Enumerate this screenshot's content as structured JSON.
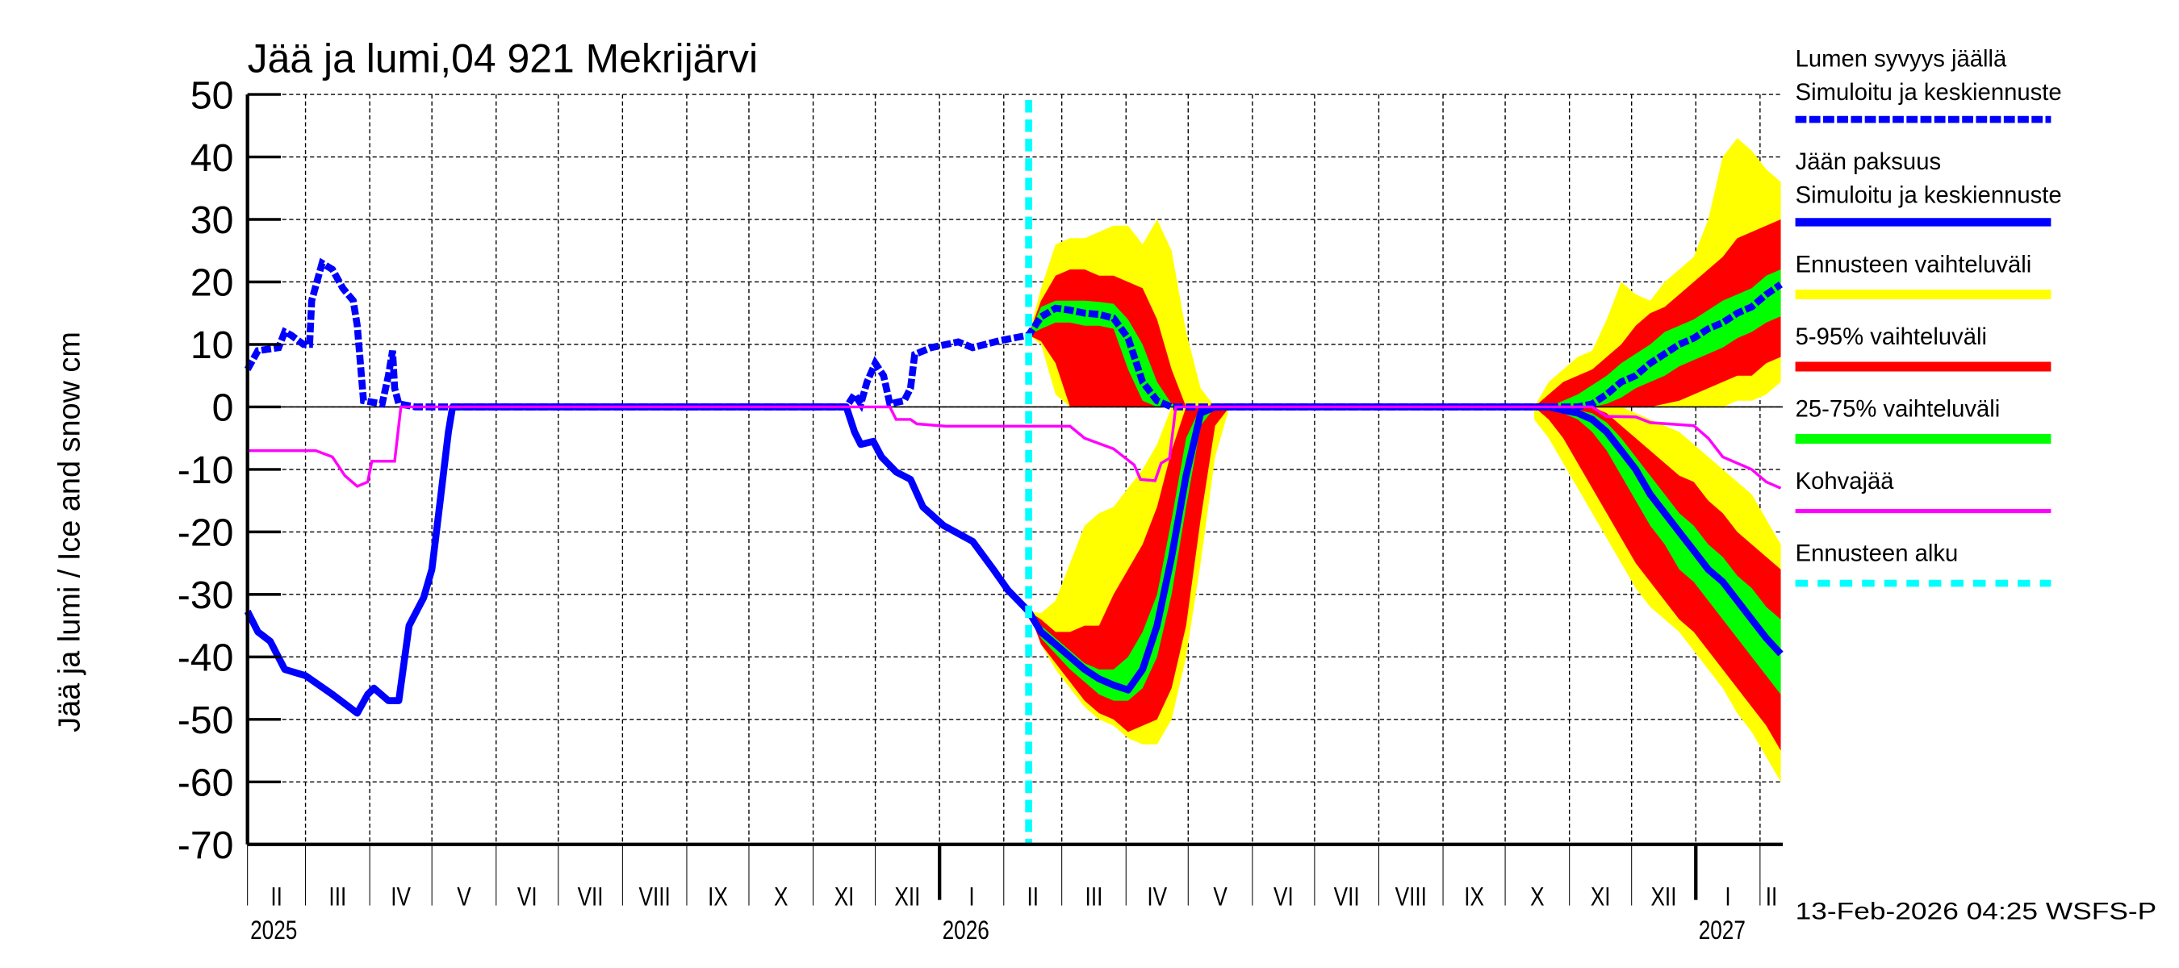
{
  "chart_data": {
    "type": "line",
    "title": "Jää ja lumi,04 921 Mekrijärvi",
    "ylabel": "Jää ja lumi / Ice and snow    cm",
    "ylim": [
      -70,
      50
    ],
    "yticks": [
      50,
      40,
      30,
      20,
      10,
      0,
      -10,
      -20,
      -30,
      -40,
      -50,
      -60,
      -70
    ],
    "x_range": [
      "2025-02-01",
      "2027-02-12"
    ],
    "grid": true,
    "legend_position": "right",
    "month_labels": [
      "II",
      "III",
      "IV",
      "V",
      "VI",
      "VII",
      "VIII",
      "IX",
      "X",
      "XI",
      "XII",
      "I",
      "II",
      "III",
      "IV",
      "V",
      "VI",
      "VII",
      "VIII",
      "IX",
      "X",
      "XI",
      "XII",
      "I",
      "II"
    ],
    "year_labels": [
      {
        "year": "2025",
        "date": "2025-02-01"
      },
      {
        "year": "2026",
        "date": "2026-01-01"
      },
      {
        "year": "2027",
        "date": "2027-01-01"
      }
    ],
    "forecast_start": "2026-02-13",
    "timestamp": "13-Feb-2026 04:25 WSFS-P",
    "colors": {
      "snow": "#0000ff",
      "ice": "#0000ff",
      "range": "#ffff00",
      "p5_95": "#ff0000",
      "p25_75": "#00ff00",
      "kohva": "#ff00ff",
      "forecast_start": "#00ffff"
    },
    "legend": [
      {
        "title": "Lumen syvyys jäällä",
        "subtitle": "Simuloitu ja keskiennuste",
        "style": "dashed",
        "color": "#0000ff"
      },
      {
        "title": "Jään paksuus",
        "subtitle": "Simuloitu ja keskiennuste",
        "style": "solid",
        "color": "#0000ff"
      },
      {
        "title": "Ennusteen vaihteluväli",
        "style": "band",
        "color": "#ffff00"
      },
      {
        "title": "5-95% vaihteluväli",
        "style": "band",
        "color": "#ff0000"
      },
      {
        "title": "25-75% vaihteluväli",
        "style": "band",
        "color": "#00ff00"
      },
      {
        "title": "Kohvajää",
        "style": "thin",
        "color": "#ff00ff"
      },
      {
        "title": "Ennusteen alku",
        "style": "dotted",
        "color": "#00ffff"
      }
    ],
    "series": [
      {
        "name": "Lumen syvyys jäällä",
        "points": [
          [
            "2025-02-01",
            6
          ],
          [
            "2025-02-06",
            9
          ],
          [
            "2025-02-16",
            9.5
          ],
          [
            "2025-02-19",
            12
          ],
          [
            "2025-02-22",
            11.5
          ],
          [
            "2025-02-28",
            10
          ],
          [
            "2025-03-03",
            10
          ],
          [
            "2025-03-04",
            17
          ],
          [
            "2025-03-09",
            23
          ],
          [
            "2025-03-14",
            22
          ],
          [
            "2025-03-19",
            19
          ],
          [
            "2025-03-24",
            17
          ],
          [
            "2025-03-26",
            13
          ],
          [
            "2025-03-29",
            1
          ],
          [
            "2025-04-07",
            0.5
          ],
          [
            "2025-04-10",
            5
          ],
          [
            "2025-04-12",
            9
          ],
          [
            "2025-04-13",
            3
          ],
          [
            "2025-04-15",
            0.5
          ],
          [
            "2025-04-23",
            0
          ],
          [
            "2025-11-17",
            0
          ],
          [
            "2025-11-18",
            0.5
          ],
          [
            "2025-11-21",
            2
          ],
          [
            "2025-11-24",
            0.5
          ],
          [
            "2025-11-27",
            4
          ],
          [
            "2025-12-01",
            7
          ],
          [
            "2025-12-05",
            5
          ],
          [
            "2025-12-08",
            0.5
          ],
          [
            "2025-12-15",
            1
          ],
          [
            "2025-12-18",
            3
          ],
          [
            "2025-12-20",
            8.4
          ],
          [
            "2025-12-28",
            9.5
          ],
          [
            "2026-01-10",
            10.4
          ],
          [
            "2026-01-17",
            9.5
          ],
          [
            "2026-01-30",
            10.6
          ],
          [
            "2026-02-13",
            11.5
          ]
        ]
      },
      {
        "name": "Jään paksuus",
        "points": [
          [
            "2025-02-01",
            -32.7
          ],
          [
            "2025-02-06",
            -36
          ],
          [
            "2025-02-12",
            -37.5
          ],
          [
            "2025-02-19",
            -42
          ],
          [
            "2025-03-01",
            -43
          ],
          [
            "2025-03-14",
            -46
          ],
          [
            "2025-03-26",
            -49
          ],
          [
            "2025-03-31",
            -46
          ],
          [
            "2025-04-03",
            -45
          ],
          [
            "2025-04-10",
            -47
          ],
          [
            "2025-04-15",
            -47
          ],
          [
            "2025-04-20",
            -35
          ],
          [
            "2025-04-27",
            -30.5
          ],
          [
            "2025-05-01",
            -26
          ],
          [
            "2025-05-05",
            -15
          ],
          [
            "2025-05-09",
            -4
          ],
          [
            "2025-05-11",
            0
          ],
          [
            "2025-11-17",
            0
          ],
          [
            "2025-11-21",
            -4
          ],
          [
            "2025-11-24",
            -6
          ],
          [
            "2025-11-30",
            -5.5
          ],
          [
            "2025-12-04",
            -8
          ],
          [
            "2025-12-11",
            -10.4
          ],
          [
            "2025-12-18",
            -11.6
          ],
          [
            "2025-12-24",
            -16
          ],
          [
            "2026-01-03",
            -19
          ],
          [
            "2026-01-17",
            -21.5
          ],
          [
            "2026-01-27",
            -26
          ],
          [
            "2026-02-03",
            -29.3
          ],
          [
            "2026-02-13",
            -32.7
          ]
        ]
      },
      {
        "name": "Kohvajää",
        "points": [
          [
            "2025-02-01",
            -7
          ],
          [
            "2025-03-06",
            -7
          ],
          [
            "2025-03-14",
            -8
          ],
          [
            "2025-03-20",
            -11
          ],
          [
            "2025-03-26",
            -12.7
          ],
          [
            "2025-03-31",
            -12
          ],
          [
            "2025-04-02",
            -8.7
          ],
          [
            "2025-04-13",
            -8.7
          ],
          [
            "2025-04-16",
            0
          ],
          [
            "2025-12-08",
            0
          ],
          [
            "2025-12-11",
            -2
          ],
          [
            "2025-12-18",
            -2
          ],
          [
            "2025-12-21",
            -2.7
          ],
          [
            "2026-01-04",
            -3.1
          ],
          [
            "2026-03-05",
            -3.1
          ],
          [
            "2026-03-12",
            -5
          ],
          [
            "2026-03-26",
            -6.7
          ],
          [
            "2026-04-05",
            -9.3
          ],
          [
            "2026-04-08",
            -11.6
          ],
          [
            "2026-04-15",
            -11.8
          ],
          [
            "2026-04-18",
            -9
          ],
          [
            "2026-04-22",
            -8.2
          ],
          [
            "2026-04-25",
            0
          ],
          [
            "2026-11-12",
            0
          ],
          [
            "2026-11-19",
            -1.5
          ],
          [
            "2026-12-03",
            -1.6
          ],
          [
            "2026-12-10",
            -2.5
          ],
          [
            "2026-12-31",
            -3
          ],
          [
            "2027-01-07",
            -5
          ],
          [
            "2027-01-14",
            -8
          ],
          [
            "2027-01-21",
            -9
          ],
          [
            "2027-01-28",
            -10
          ],
          [
            "2027-02-04",
            -12
          ],
          [
            "2027-02-11",
            -13
          ]
        ]
      }
    ],
    "forecast": [
      {
        "dates": [
          "2026-02-13",
          "2026-02-19",
          "2026-02-26",
          "2026-03-05",
          "2026-03-12",
          "2026-03-19",
          "2026-03-26",
          "2026-04-02",
          "2026-04-09",
          "2026-04-16",
          "2026-04-23",
          "2026-04-30",
          "2026-05-07",
          "2026-05-14",
          "2026-05-21"
        ],
        "snow": {
          "median": [
            11.5,
            14.4,
            15.8,
            15.5,
            15,
            14.8,
            14.2,
            11,
            4,
            1,
            0,
            0,
            0,
            0,
            0
          ],
          "p25": [
            11.5,
            12.5,
            13.5,
            13.5,
            13,
            13,
            12.5,
            6,
            1,
            0,
            0,
            0,
            0,
            0,
            0
          ],
          "p75": [
            11.5,
            16,
            17,
            17,
            17,
            16.8,
            16.5,
            14,
            10,
            4,
            0.5,
            0,
            0,
            0,
            0
          ],
          "p5": [
            11.5,
            10.5,
            7,
            0,
            0,
            0,
            0,
            0,
            0,
            0,
            0,
            0,
            0,
            0,
            0
          ],
          "p95": [
            11.5,
            17,
            21,
            22,
            22,
            21,
            21,
            20,
            19,
            14,
            6,
            0,
            0,
            0,
            0
          ],
          "min": [
            11.5,
            10,
            2,
            0,
            0,
            0,
            0,
            0,
            0,
            0,
            0,
            0,
            0,
            0,
            0
          ],
          "max": [
            11.5,
            19,
            26,
            27,
            27,
            28,
            29,
            29,
            26,
            30,
            25,
            12,
            3,
            0,
            0
          ]
        },
        "ice": {
          "median": [
            -32.7,
            -36,
            -38,
            -40,
            -42,
            -43.5,
            -44.5,
            -45.3,
            -42,
            -35,
            -24,
            -11,
            -1,
            0,
            0
          ],
          "p75": [
            -32.7,
            -35,
            -37,
            -39,
            -41,
            -42,
            -42,
            -40,
            -36,
            -30,
            -18,
            -5,
            0,
            0,
            0
          ],
          "p25": [
            -32.7,
            -37,
            -39.5,
            -42,
            -44,
            -46,
            -47,
            -47,
            -45,
            -40,
            -30,
            -16,
            -3,
            0,
            0
          ],
          "p95": [
            -32.7,
            -34,
            -36,
            -36,
            -35,
            -35,
            -30,
            -26,
            -22,
            -16,
            -7,
            0,
            0,
            0,
            0
          ],
          "p5": [
            -32.7,
            -38,
            -41,
            -44,
            -47,
            -49,
            -50,
            -52,
            -51,
            -50,
            -45,
            -35,
            -18,
            -3,
            0
          ],
          "max": [
            -32.7,
            -33,
            -31,
            -25,
            -19,
            -17,
            -16,
            -13,
            -10,
            -6,
            0,
            0,
            0,
            0,
            0
          ],
          "min": [
            -32.7,
            -38,
            -42,
            -45,
            -48,
            -50,
            -51,
            -53,
            -54,
            -54,
            -50,
            -40,
            -25,
            -8,
            0
          ]
        }
      },
      {
        "dates": [
          "2026-10-15",
          "2026-10-22",
          "2026-10-29",
          "2026-11-05",
          "2026-11-12",
          "2026-11-19",
          "2026-11-26",
          "2026-12-03",
          "2026-12-10",
          "2026-12-17",
          "2026-12-24",
          "2026-12-31",
          "2027-01-07",
          "2027-01-14",
          "2027-01-21",
          "2027-01-28",
          "2027-02-04",
          "2027-02-11"
        ],
        "snow": {
          "median": [
            0,
            0,
            0,
            0,
            0.5,
            2,
            4,
            5,
            7,
            8.5,
            10,
            11,
            12.5,
            13.5,
            15,
            16,
            18,
            19.6
          ],
          "p25": [
            0,
            0,
            0,
            0,
            0,
            0.5,
            1.5,
            3,
            4,
            5,
            6.5,
            7.5,
            8.5,
            9.5,
            11,
            12,
            13.5,
            14.5
          ],
          "p75": [
            0,
            0,
            1,
            2,
            3.5,
            5,
            7,
            8.5,
            10,
            12,
            13,
            14,
            15.5,
            17,
            18,
            19,
            21,
            22
          ],
          "p5": [
            0,
            0,
            0,
            0,
            0,
            0,
            0,
            0,
            0,
            0.5,
            1,
            2,
            3,
            4,
            5,
            5,
            7,
            8
          ],
          "p95": [
            0,
            2,
            4,
            5,
            6,
            8,
            10,
            13,
            15,
            16,
            18,
            20,
            22,
            24,
            27,
            28,
            29,
            30
          ],
          "min": [
            0,
            0,
            0,
            0,
            0,
            0,
            0,
            0,
            0,
            0,
            0,
            0,
            0,
            0,
            1,
            1,
            2,
            4
          ],
          "max": [
            0,
            4,
            6,
            8,
            9,
            14,
            20,
            18,
            17,
            20,
            22,
            24,
            30,
            40,
            43,
            41,
            38,
            36
          ]
        },
        "ice": {
          "median": [
            0,
            0,
            -0.5,
            -1,
            -2,
            -4,
            -7,
            -10,
            -14,
            -17,
            -20,
            -23,
            -26,
            -28,
            -31,
            -34,
            -37,
            -39.5
          ],
          "p75": [
            0,
            0,
            0,
            -0.5,
            -1,
            -2.5,
            -5,
            -8,
            -11,
            -14,
            -17,
            -19,
            -22,
            -24,
            -27,
            -29,
            -32,
            -34
          ],
          "p25": [
            0,
            0,
            -1,
            -2,
            -4,
            -7,
            -11,
            -15,
            -19,
            -22,
            -26,
            -28,
            -31,
            -34,
            -37,
            -40,
            -43,
            -46
          ],
          "p95": [
            0,
            0,
            0,
            0,
            0,
            -1,
            -3,
            -5,
            -7,
            -9,
            -11,
            -12,
            -15,
            -17,
            -20,
            -22,
            -24,
            -26
          ],
          "p5": [
            0,
            -2,
            -5,
            -9,
            -13,
            -17,
            -21,
            -25,
            -28,
            -31,
            -34,
            -36,
            -39,
            -42,
            -45,
            -48,
            -51,
            -55
          ],
          "max": [
            0,
            0,
            0,
            0,
            0,
            0,
            0,
            -1,
            -2,
            -3,
            -4,
            -6,
            -8,
            -10,
            -12,
            -14,
            -18,
            -22
          ],
          "min": [
            -2,
            -5,
            -9,
            -13,
            -17,
            -21,
            -25,
            -29,
            -32,
            -34,
            -36,
            -39,
            -42,
            -45,
            -49,
            -52,
            -56,
            -60
          ]
        }
      }
    ]
  }
}
